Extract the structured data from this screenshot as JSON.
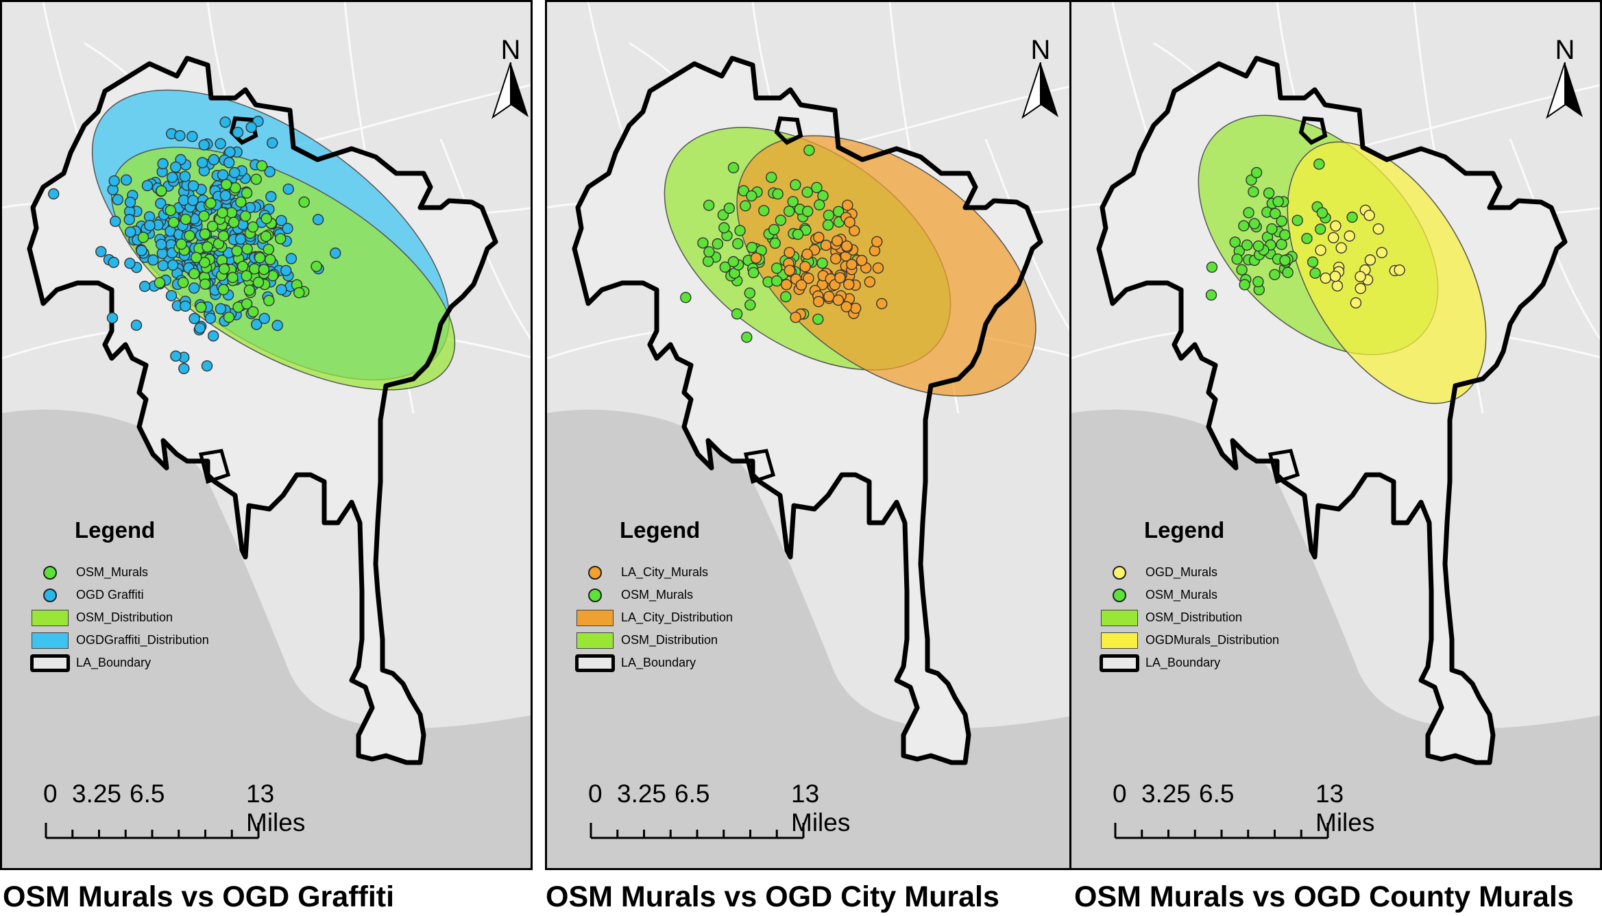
{
  "colors": {
    "osm_point": "#5be338",
    "graffiti_point": "#27b7ea",
    "city_point": "#f5a02c",
    "county_point": "#fbf36b",
    "osm_dist": "#9ae636",
    "graffiti_dist": "#3cc3f0",
    "city_dist": "#f0a030",
    "county_dist": "#f8f040",
    "boundary": "#000000",
    "land": "#e6e6e6",
    "ocean": "#cccccc"
  },
  "north_arrow": {
    "label": "N"
  },
  "scale_bar": {
    "labels": [
      "0",
      "3.25",
      "6.5",
      "13 Miles"
    ]
  },
  "panels": [
    {
      "caption": "OSM Murals vs OGD Graffiti",
      "legend": {
        "title": "Legend",
        "items": [
          {
            "label": "OSM_Murals",
            "symbol": "point",
            "color": "#5be338"
          },
          {
            "label": "OGD Graffiti",
            "symbol": "point",
            "color": "#27b7ea"
          },
          {
            "label": "OSM_Distribution",
            "symbol": "area",
            "color": "#9ae636"
          },
          {
            "label": "OGDGraffiti_Distribution",
            "symbol": "area",
            "color": "#3cc3f0"
          },
          {
            "label": "LA_Boundary",
            "symbol": "boundary",
            "color": "#000000"
          }
        ]
      }
    },
    {
      "caption": "OSM Murals vs OGD City Murals",
      "legend": {
        "title": "Legend",
        "items": [
          {
            "label": "LA_City_Murals",
            "symbol": "point",
            "color": "#f5a02c"
          },
          {
            "label": "OSM_Murals",
            "symbol": "point",
            "color": "#5be338"
          },
          {
            "label": "LA_City_Distribution",
            "symbol": "area",
            "color": "#f0a030"
          },
          {
            "label": "OSM_Distribution",
            "symbol": "area",
            "color": "#9ae636"
          },
          {
            "label": "LA_Boundary",
            "symbol": "boundary",
            "color": "#000000"
          }
        ]
      }
    },
    {
      "caption": "OSM Murals vs OGD County Murals",
      "legend": {
        "title": "Legend",
        "items": [
          {
            "label": "OGD_Murals",
            "symbol": "point",
            "color": "#fbf36b"
          },
          {
            "label": "OSM_Murals",
            "symbol": "point",
            "color": "#5be338"
          },
          {
            "label": "OSM_Distribution",
            "symbol": "area",
            "color": "#9ae636"
          },
          {
            "label": "OGDMurals_Distribution",
            "symbol": "area",
            "color": "#f8f040"
          },
          {
            "label": "LA_Boundary",
            "symbol": "boundary",
            "color": "#000000"
          }
        ]
      }
    }
  ]
}
